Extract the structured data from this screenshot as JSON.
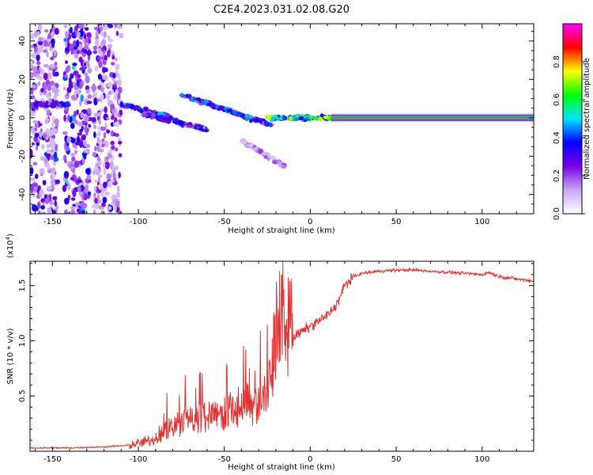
{
  "title": "C2E4.2023.031.02.08.G20",
  "chart_data": [
    {
      "type": "heatmap",
      "xlabel": "Height of straight line (km)",
      "ylabel": "Frequency (Hz)",
      "xlim": [
        -163,
        130
      ],
      "ylim": [
        -50,
        49
      ],
      "x_ticks": [
        -150,
        -100,
        -50,
        0,
        50,
        100
      ],
      "y_ticks": [
        -40,
        -20,
        0,
        20,
        40
      ],
      "colorbar": {
        "label": "Normalized spectral amplitude",
        "range": [
          0,
          1
        ],
        "ticks": [
          0.0,
          0.2,
          0.4,
          0.6,
          0.8
        ],
        "colors": [
          "#ffffff",
          "#c9a7f3",
          "#7a00e6",
          "#0000ff",
          "#00e5ff",
          "#00ff00",
          "#ffff00",
          "#ff0000",
          "#ff00ff"
        ]
      },
      "features": {
        "noise_region_x": [
          -163,
          -110
        ],
        "noise_bands": [
          {
            "x": [
              -163,
              -147
            ],
            "y": [
              -50,
              49
            ],
            "amp": 0.45
          },
          {
            "x": [
              -143,
              -128
            ],
            "y": [
              -50,
              49
            ],
            "amp": 0.6
          },
          {
            "x": [
              -126,
              -110
            ],
            "y": [
              -50,
              49
            ],
            "amp": 0.4
          }
        ],
        "traces": [
          {
            "x": [
              -160,
              -140
            ],
            "y": [
              7,
              7
            ],
            "amp": 0.3
          },
          {
            "x": [
              -110,
              -80
            ],
            "y": [
              7,
              0
            ],
            "amp": 0.35
          },
          {
            "x": [
              -97,
              -60
            ],
            "y": [
              2,
              -6
            ],
            "amp": 0.3
          },
          {
            "x": [
              -75,
              -22
            ],
            "y": [
              12,
              -4
            ],
            "amp": 0.35
          },
          {
            "x": [
              -40,
              -15
            ],
            "y": [
              -12,
              -25
            ],
            "amp": 0.15
          },
          {
            "x": [
              -25,
              12
            ],
            "y": [
              0,
              0
            ],
            "amp": 0.55
          }
        ],
        "steady_line": {
          "x": [
            12,
            130
          ],
          "y": 0,
          "amp": 0.9
        }
      }
    },
    {
      "type": "line",
      "xlabel": "Height of straight line (km)",
      "ylabel": "SNR (10 * v/v)",
      "y_multiplier": "(x10",
      "y_multiplier_exponent": "4",
      "y_multiplier_close": ")",
      "xlim": [
        -163,
        130
      ],
      "ylim": [
        0,
        1.72
      ],
      "x_ticks": [
        -150,
        -100,
        -50,
        0,
        50,
        100
      ],
      "y_ticks": [
        0.5,
        1.0,
        1.5
      ],
      "y_tick_labels": [
        "0.5",
        "1.0",
        "1.5"
      ],
      "color": "#e83030",
      "series": [
        {
          "x": [
            -163,
            -140,
            -120,
            -108,
            -100,
            -92,
            -85,
            -80,
            -75,
            -70,
            -65,
            -60,
            -55,
            -50,
            -45,
            -40,
            -35,
            -30,
            -25,
            -22,
            -20,
            -18,
            -15,
            -12,
            -10,
            -5,
            0,
            5,
            10,
            15,
            18,
            20,
            25,
            30,
            40,
            50,
            60,
            70,
            80,
            90,
            100,
            104,
            110,
            120,
            130
          ],
          "y": [
            0.03,
            0.03,
            0.04,
            0.05,
            0.07,
            0.1,
            0.14,
            0.18,
            0.21,
            0.23,
            0.24,
            0.26,
            0.27,
            0.28,
            0.3,
            0.32,
            0.34,
            0.36,
            0.45,
            0.62,
            0.78,
            0.82,
            0.9,
            0.98,
            1.03,
            1.08,
            1.13,
            1.18,
            1.23,
            1.32,
            1.42,
            1.5,
            1.58,
            1.61,
            1.63,
            1.64,
            1.64,
            1.63,
            1.62,
            1.61,
            1.6,
            1.62,
            1.58,
            1.56,
            1.54
          ]
        }
      ]
    }
  ]
}
